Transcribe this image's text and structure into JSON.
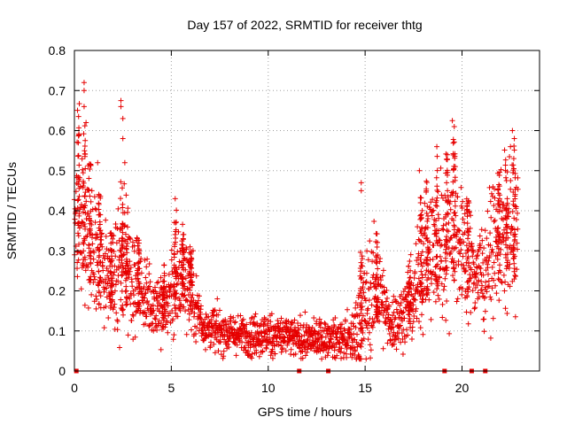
{
  "chart_data": {
    "type": "scatter",
    "title": "Day 157 of 2022, SRMTID for receiver thtg",
    "xlabel": "GPS time / hours",
    "ylabel": "SRMTID / TECUs",
    "xlim": [
      0,
      24
    ],
    "ylim": [
      0,
      0.8
    ],
    "grid": true,
    "marker": "+",
    "x_ticks": [
      0,
      5,
      10,
      15,
      20
    ],
    "y_ticks": [
      0,
      0.1,
      0.2,
      0.3,
      0.4,
      0.5,
      0.6,
      0.7,
      0.8
    ],
    "x_tick_labels": [
      "0",
      "5",
      "10",
      "15",
      "20"
    ],
    "y_tick_labels": [
      "0",
      "0.1",
      "0.2",
      "0.3",
      "0.4",
      "0.5",
      "0.6",
      "0.7",
      "0.8"
    ],
    "envelope": {
      "description": "Median SRMTID level and spread vs GPS time (hours); points scatter around median within spread",
      "t": [
        0,
        0.3,
        0.6,
        1.0,
        1.5,
        2.0,
        2.5,
        2.8,
        3.2,
        3.7,
        4.2,
        4.7,
        5.2,
        5.7,
        6.2,
        6.7,
        7.5,
        8.5,
        9.5,
        10.5,
        11.5,
        12.5,
        13.5,
        14.3,
        14.7,
        15.2,
        15.7,
        16.2,
        16.8,
        17.5,
        18.0,
        18.5,
        19.0,
        19.5,
        20.0,
        20.5,
        21.0,
        21.5,
        22.0,
        22.5,
        22.9
      ],
      "median": [
        0.38,
        0.42,
        0.36,
        0.3,
        0.25,
        0.22,
        0.28,
        0.26,
        0.22,
        0.18,
        0.17,
        0.16,
        0.22,
        0.24,
        0.17,
        0.11,
        0.1,
        0.09,
        0.09,
        0.09,
        0.08,
        0.08,
        0.08,
        0.08,
        0.12,
        0.18,
        0.2,
        0.12,
        0.13,
        0.18,
        0.28,
        0.3,
        0.32,
        0.38,
        0.3,
        0.26,
        0.24,
        0.3,
        0.32,
        0.34,
        0.38
      ],
      "spread": [
        0.1,
        0.14,
        0.1,
        0.1,
        0.07,
        0.06,
        0.12,
        0.08,
        0.06,
        0.05,
        0.05,
        0.05,
        0.08,
        0.06,
        0.05,
        0.03,
        0.03,
        0.025,
        0.03,
        0.03,
        0.025,
        0.025,
        0.025,
        0.03,
        0.08,
        0.08,
        0.07,
        0.04,
        0.04,
        0.06,
        0.09,
        0.1,
        0.1,
        0.11,
        0.08,
        0.07,
        0.07,
        0.08,
        0.09,
        0.1,
        0.12
      ]
    },
    "peaks": [
      {
        "x": 0.5,
        "y": 0.72
      },
      {
        "x": 0.5,
        "y": 0.7
      },
      {
        "x": 0.5,
        "y": 0.66
      },
      {
        "x": 0.6,
        "y": 0.62
      },
      {
        "x": 2.4,
        "y": 0.675
      },
      {
        "x": 2.4,
        "y": 0.66
      },
      {
        "x": 2.5,
        "y": 0.63
      },
      {
        "x": 2.5,
        "y": 0.58
      },
      {
        "x": 2.6,
        "y": 0.52
      },
      {
        "x": 1.2,
        "y": 0.52
      },
      {
        "x": 5.2,
        "y": 0.43
      },
      {
        "x": 14.8,
        "y": 0.47
      },
      {
        "x": 14.8,
        "y": 0.45
      },
      {
        "x": 19.5,
        "y": 0.625
      },
      {
        "x": 19.6,
        "y": 0.61
      },
      {
        "x": 18.7,
        "y": 0.56
      },
      {
        "x": 22.6,
        "y": 0.6
      },
      {
        "x": 22.7,
        "y": 0.58
      },
      {
        "x": 22.5,
        "y": 0.56
      },
      {
        "x": 17.8,
        "y": 0.5
      }
    ],
    "zero_markers_x": [
      0.1,
      11.6,
      13.1,
      19.1,
      20.5,
      21.2
    ]
  },
  "colors": {
    "series": "#e60000",
    "grid": "#a0a0a0",
    "axis": "#000000"
  }
}
